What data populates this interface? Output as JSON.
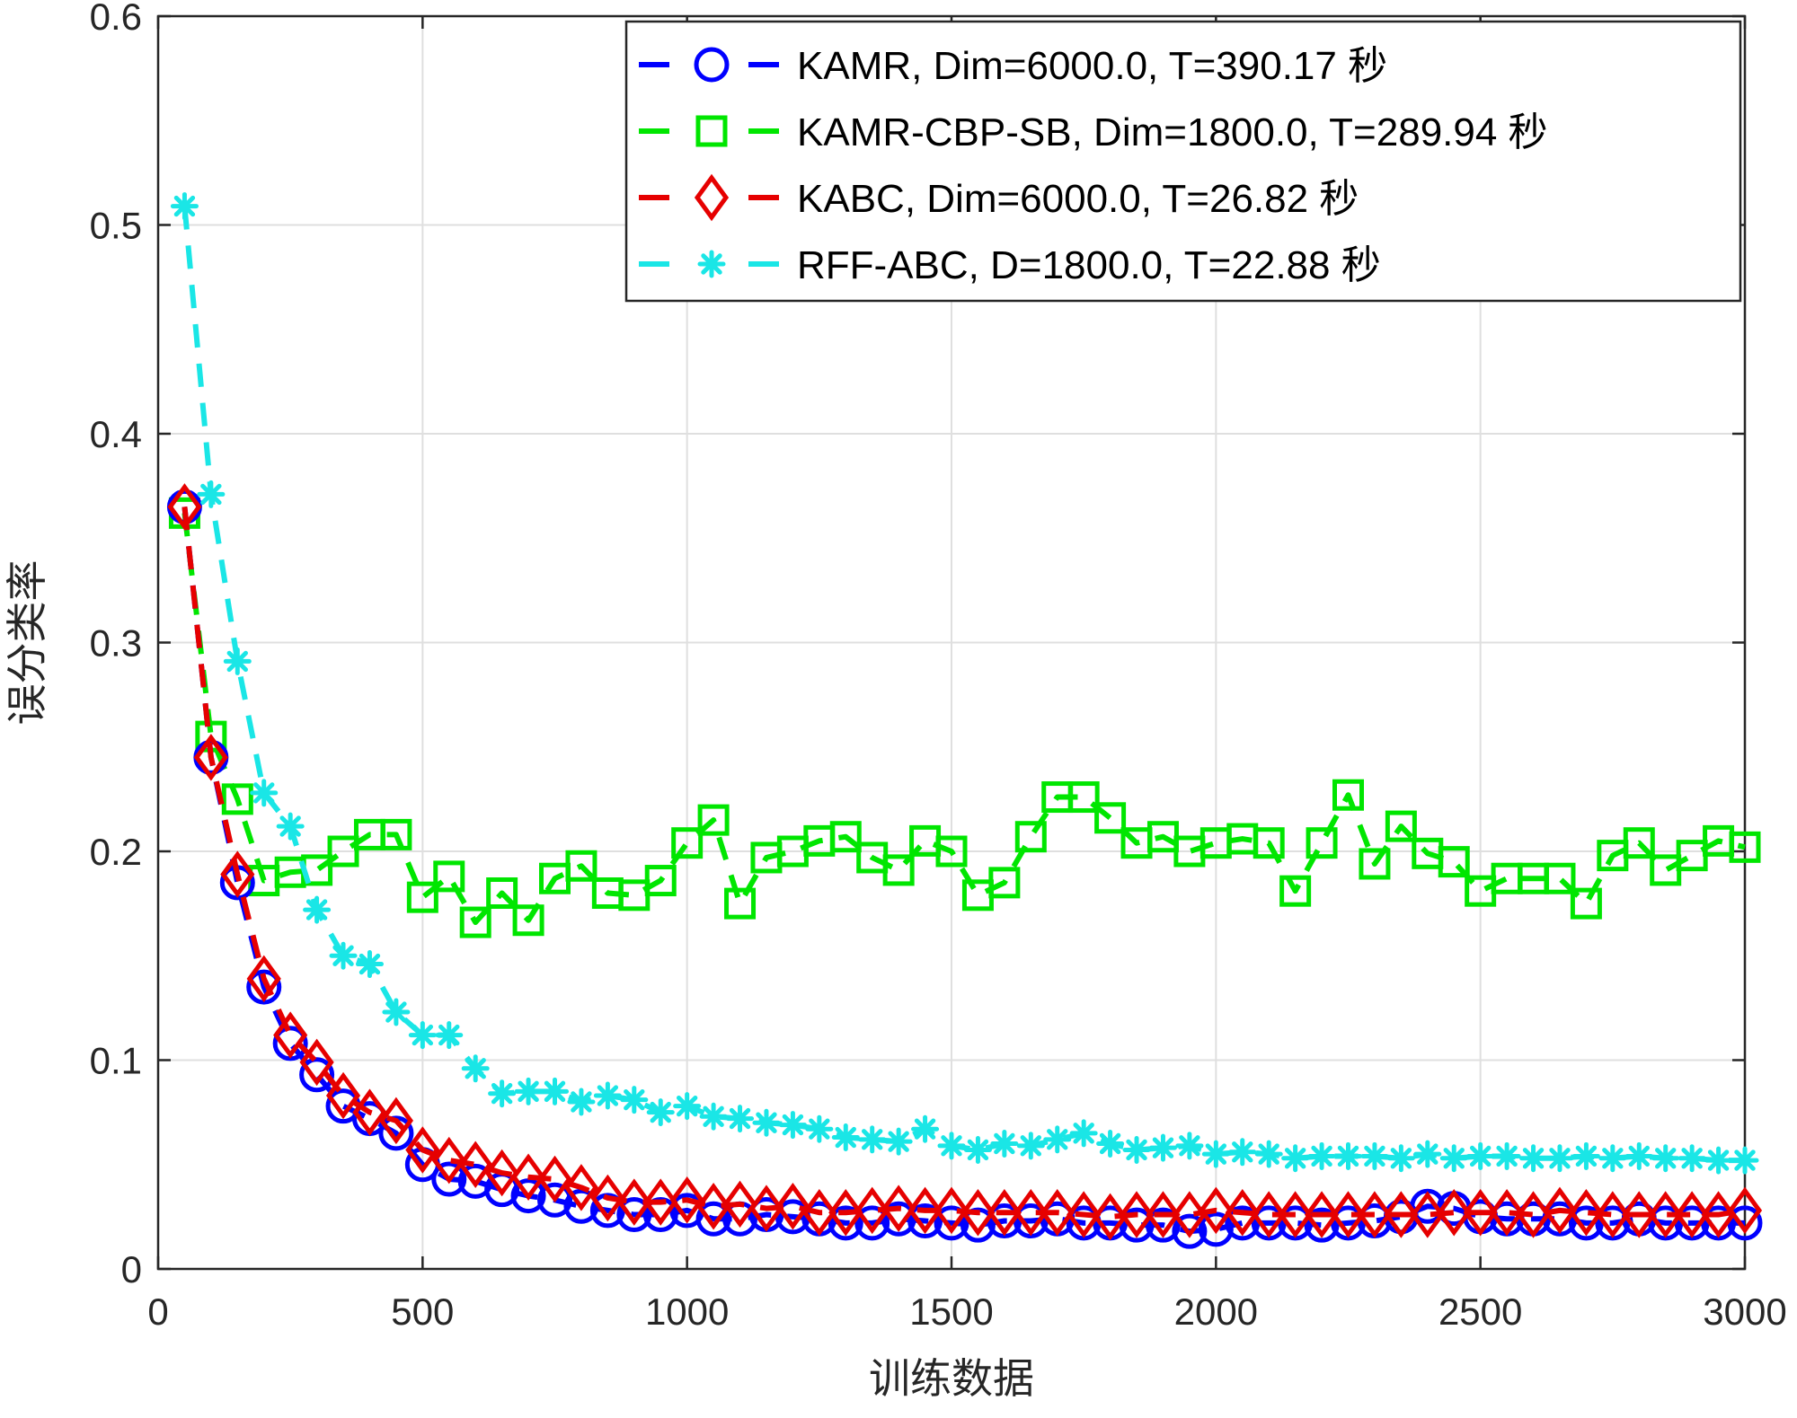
{
  "chart_data": {
    "type": "line",
    "title": "",
    "xlabel": "训练数据",
    "ylabel": "误分类率",
    "xlim": [
      0,
      3000
    ],
    "ylim": [
      0,
      0.6
    ],
    "xticks": [
      0,
      500,
      1000,
      1500,
      2000,
      2500,
      3000
    ],
    "yticks": [
      0,
      0.1,
      0.2,
      0.3,
      0.4,
      0.5,
      0.6
    ],
    "xtick_labels": [
      "0",
      "500",
      "1000",
      "1500",
      "2000",
      "2500",
      "3000"
    ],
    "ytick_labels": [
      "0",
      "0.1",
      "0.2",
      "0.3",
      "0.4",
      "0.5",
      "0.6"
    ],
    "grid": true,
    "legend_position": "top-right",
    "x": [
      50,
      100,
      150,
      200,
      250,
      300,
      350,
      400,
      450,
      500,
      550,
      600,
      650,
      700,
      750,
      800,
      850,
      900,
      950,
      1000,
      1050,
      1100,
      1150,
      1200,
      1250,
      1300,
      1350,
      1400,
      1450,
      1500,
      1550,
      1600,
      1650,
      1700,
      1750,
      1800,
      1850,
      1900,
      1950,
      2000,
      2050,
      2100,
      2150,
      2200,
      2250,
      2300,
      2350,
      2400,
      2450,
      2500,
      2550,
      2600,
      2650,
      2700,
      2750,
      2800,
      2850,
      2900,
      2950,
      3000
    ],
    "series": [
      {
        "name": "KAMR, Dim=6000.0, T=390.17 秒",
        "color": "#0000ff",
        "marker": "circle",
        "values": [
          0.365,
          0.245,
          0.185,
          0.135,
          0.108,
          0.093,
          0.078,
          0.072,
          0.065,
          0.05,
          0.043,
          0.042,
          0.038,
          0.035,
          0.033,
          0.03,
          0.028,
          0.026,
          0.026,
          0.028,
          0.024,
          0.024,
          0.026,
          0.025,
          0.024,
          0.022,
          0.022,
          0.024,
          0.023,
          0.022,
          0.021,
          0.023,
          0.023,
          0.024,
          0.022,
          0.022,
          0.021,
          0.021,
          0.018,
          0.019,
          0.022,
          0.022,
          0.022,
          0.021,
          0.022,
          0.023,
          0.025,
          0.03,
          0.029,
          0.025,
          0.024,
          0.024,
          0.024,
          0.022,
          0.022,
          0.024,
          0.022,
          0.022,
          0.022,
          0.022
        ]
      },
      {
        "name": "KAMR-CBP-SB, Dim=1800.0, T=289.94 秒",
        "color": "#00e600",
        "marker": "square",
        "values": [
          0.362,
          0.255,
          0.225,
          0.186,
          0.19,
          0.191,
          0.2,
          0.208,
          0.208,
          0.178,
          0.188,
          0.166,
          0.18,
          0.167,
          0.187,
          0.193,
          0.18,
          0.179,
          0.186,
          0.204,
          0.215,
          0.175,
          0.197,
          0.2,
          0.205,
          0.207,
          0.197,
          0.191,
          0.205,
          0.2,
          0.179,
          0.185,
          0.207,
          0.226,
          0.226,
          0.216,
          0.204,
          0.207,
          0.2,
          0.204,
          0.206,
          0.204,
          0.181,
          0.204,
          0.227,
          0.194,
          0.212,
          0.199,
          0.195,
          0.181,
          0.187,
          0.187,
          0.187,
          0.175,
          0.198,
          0.204,
          0.191,
          0.198,
          0.205,
          0.202
        ]
      },
      {
        "name": "KABC, Dim=6000.0, T=26.82 秒",
        "color": "#e60000",
        "marker": "diamond",
        "values": [
          0.365,
          0.245,
          0.189,
          0.139,
          0.112,
          0.099,
          0.083,
          0.075,
          0.071,
          0.057,
          0.052,
          0.05,
          0.046,
          0.044,
          0.043,
          0.039,
          0.034,
          0.032,
          0.032,
          0.033,
          0.03,
          0.031,
          0.029,
          0.03,
          0.027,
          0.027,
          0.028,
          0.029,
          0.028,
          0.028,
          0.027,
          0.027,
          0.027,
          0.027,
          0.026,
          0.025,
          0.026,
          0.026,
          0.026,
          0.028,
          0.027,
          0.026,
          0.026,
          0.026,
          0.026,
          0.026,
          0.026,
          0.026,
          0.027,
          0.027,
          0.027,
          0.026,
          0.028,
          0.027,
          0.026,
          0.026,
          0.026,
          0.026,
          0.026,
          0.028
        ]
      },
      {
        "name": "RFF-ABC, D=1800.0, T=22.88 秒",
        "color": "#1ae6e6",
        "marker": "asterisk",
        "values": [
          0.509,
          0.371,
          0.291,
          0.228,
          0.212,
          0.172,
          0.15,
          0.146,
          0.123,
          0.112,
          0.112,
          0.096,
          0.084,
          0.085,
          0.085,
          0.08,
          0.083,
          0.081,
          0.075,
          0.078,
          0.073,
          0.072,
          0.07,
          0.069,
          0.067,
          0.063,
          0.062,
          0.061,
          0.067,
          0.059,
          0.057,
          0.06,
          0.059,
          0.062,
          0.065,
          0.06,
          0.057,
          0.058,
          0.059,
          0.055,
          0.056,
          0.055,
          0.053,
          0.054,
          0.054,
          0.054,
          0.053,
          0.055,
          0.053,
          0.054,
          0.054,
          0.053,
          0.053,
          0.054,
          0.053,
          0.054,
          0.053,
          0.053,
          0.052,
          0.052
        ]
      }
    ]
  }
}
